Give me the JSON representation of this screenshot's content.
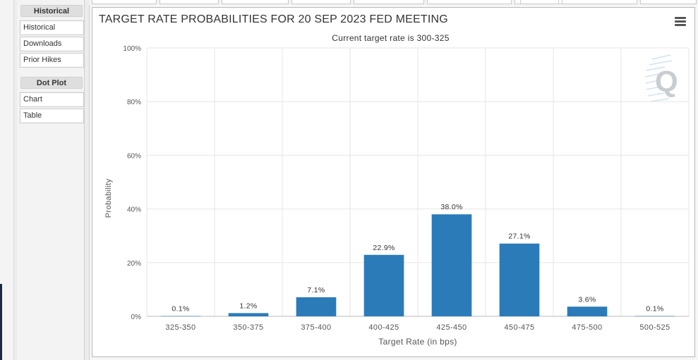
{
  "sidebar": {
    "sections": [
      {
        "header": "Historical",
        "items": [
          "Historical",
          "Downloads",
          "Prior Hikes"
        ]
      },
      {
        "header": "Dot Plot",
        "items": [
          "Chart",
          "Table"
        ]
      }
    ]
  },
  "chart": {
    "menu_icon": "hamburger-menu-icon",
    "logo_letter": "Q"
  },
  "chart_data": {
    "type": "bar",
    "title": "TARGET RATE PROBABILITIES FOR 20 SEP 2023 FED MEETING",
    "subtitle": "Current target rate is 300-325",
    "xlabel": "Target Rate (in bps)",
    "ylabel": "Probability",
    "categories": [
      "325-350",
      "350-375",
      "375-400",
      "400-425",
      "425-450",
      "450-475",
      "475-500",
      "500-525"
    ],
    "values": [
      0.1,
      1.2,
      7.1,
      22.9,
      38.0,
      27.1,
      3.6,
      0.1
    ],
    "data_labels": [
      "0.1%",
      "1.2%",
      "7.1%",
      "22.9%",
      "38.0%",
      "27.1%",
      "3.6%",
      "0.1%"
    ],
    "yticks": [
      "0%",
      "20%",
      "40%",
      "60%",
      "80%",
      "100%"
    ],
    "ylim": [
      0,
      100
    ],
    "grid": true,
    "bar_color": "#2b7bb9"
  }
}
